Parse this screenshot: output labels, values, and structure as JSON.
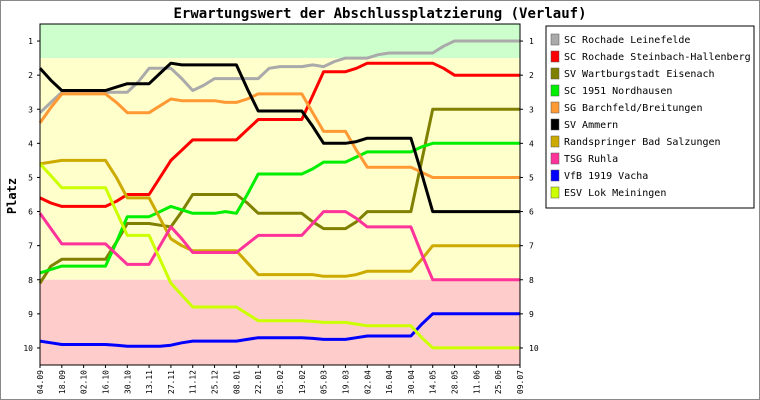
{
  "chart_data": {
    "type": "line",
    "title": "Erwartungswert der Abschlussplatzierung (Verlauf)",
    "ylabel": "Platz",
    "xlabel": "",
    "ylim": [
      0.5,
      10.5
    ],
    "y_inverted": true,
    "y_ticks": [
      "1",
      "2",
      "3",
      "4",
      "5",
      "6",
      "7",
      "8",
      "9",
      "10"
    ],
    "x_tick_labels": [
      "04.09",
      "18.09",
      "02.10",
      "16.10",
      "30.10",
      "13.11",
      "27.11",
      "11.12",
      "25.12",
      "08.01",
      "22.01",
      "05.02",
      "19.02",
      "05.03",
      "19.03",
      "02.04",
      "16.04",
      "30.04",
      "14.05",
      "28.05",
      "11.06",
      "25.06",
      "09.07"
    ],
    "legend_position": "top-right",
    "grid": false,
    "bands": [
      {
        "color": "#ccffcc",
        "from": 0.5,
        "to": 1.5
      },
      {
        "color": "#ffffcc",
        "from": 1.5,
        "to": 8.0
      },
      {
        "color": "#ffcccc",
        "from": 8.0,
        "to": 10.5
      }
    ],
    "x": [
      0,
      0.5,
      1,
      1.5,
      2,
      2.5,
      3,
      3.5,
      4,
      4.5,
      5,
      5.5,
      6,
      6.5,
      7,
      7.5,
      8,
      8.5,
      9,
      9.5,
      10,
      10.5,
      11,
      11.5,
      12,
      12.5,
      13,
      13.5,
      14,
      14.5,
      15,
      15.5,
      16,
      16.5,
      17,
      17.5,
      18,
      18.5,
      19,
      19.5,
      20,
      20.5,
      21,
      21.5,
      22
    ],
    "series": [
      {
        "name": "SC Rochade Leinefelde",
        "color": "#aaaaaa",
        "values": [
          3.1,
          2.8,
          2.5,
          2.5,
          2.5,
          2.5,
          2.5,
          2.5,
          2.5,
          2.2,
          1.8,
          1.8,
          1.8,
          2.1,
          2.45,
          2.3,
          2.1,
          2.1,
          2.1,
          2.1,
          2.1,
          1.8,
          1.75,
          1.75,
          1.75,
          1.7,
          1.75,
          1.6,
          1.5,
          1.5,
          1.5,
          1.4,
          1.35,
          1.35,
          1.35,
          1.35,
          1.35,
          1.15,
          1.0,
          1.0,
          1.0,
          1.0,
          1.0,
          1.0,
          1.0
        ]
      },
      {
        "name": "SC Rochade Steinbach-Hallenberg",
        "color": "#ff0000",
        "values": [
          5.6,
          5.75,
          5.85,
          5.85,
          5.85,
          5.85,
          5.85,
          5.7,
          5.5,
          5.5,
          5.5,
          5.0,
          4.5,
          4.2,
          3.9,
          3.9,
          3.9,
          3.9,
          3.9,
          3.6,
          3.3,
          3.3,
          3.3,
          3.3,
          3.3,
          2.6,
          1.9,
          1.9,
          1.9,
          1.8,
          1.65,
          1.65,
          1.65,
          1.65,
          1.65,
          1.65,
          1.65,
          1.8,
          2.0,
          2.0,
          2.0,
          2.0,
          2.0,
          2.0,
          2.0
        ]
      },
      {
        "name": "SV Wartburgstadt Eisenach",
        "color": "#808000",
        "values": [
          8.1,
          7.6,
          7.4,
          7.4,
          7.4,
          7.4,
          7.4,
          6.9,
          6.35,
          6.35,
          6.35,
          6.4,
          6.45,
          6.0,
          5.5,
          5.5,
          5.5,
          5.5,
          5.5,
          5.75,
          6.05,
          6.05,
          6.05,
          6.05,
          6.05,
          6.3,
          6.5,
          6.5,
          6.5,
          6.3,
          6.0,
          6.0,
          6.0,
          6.0,
          6.0,
          4.5,
          3.0,
          3.0,
          3.0,
          3.0,
          3.0,
          3.0,
          3.0,
          3.0,
          3.0
        ]
      },
      {
        "name": "SC 1951 Nordhausen",
        "color": "#00ee00",
        "values": [
          7.8,
          7.7,
          7.6,
          7.6,
          7.6,
          7.6,
          7.6,
          6.9,
          6.15,
          6.15,
          6.15,
          6.0,
          5.85,
          5.95,
          6.05,
          6.05,
          6.05,
          6.0,
          6.05,
          5.5,
          4.9,
          4.9,
          4.9,
          4.9,
          4.9,
          4.75,
          4.55,
          4.55,
          4.55,
          4.4,
          4.25,
          4.25,
          4.25,
          4.25,
          4.25,
          4.1,
          4.0,
          4.0,
          4.0,
          4.0,
          4.0,
          4.0,
          4.0,
          4.0,
          4.0
        ]
      },
      {
        "name": "SG Barchfeld/Breitungen",
        "color": "#ff9933",
        "values": [
          3.4,
          2.95,
          2.55,
          2.55,
          2.55,
          2.55,
          2.55,
          2.8,
          3.1,
          3.1,
          3.1,
          2.9,
          2.7,
          2.75,
          2.75,
          2.75,
          2.75,
          2.8,
          2.8,
          2.7,
          2.55,
          2.55,
          2.55,
          2.55,
          2.55,
          3.1,
          3.65,
          3.65,
          3.65,
          4.2,
          4.7,
          4.7,
          4.7,
          4.7,
          4.7,
          4.85,
          5.0,
          5.0,
          5.0,
          5.0,
          5.0,
          5.0,
          5.0,
          5.0,
          5.0
        ]
      },
      {
        "name": "SV Ammern",
        "color": "#000000",
        "values": [
          1.8,
          2.15,
          2.45,
          2.45,
          2.45,
          2.45,
          2.45,
          2.35,
          2.25,
          2.25,
          2.25,
          1.95,
          1.65,
          1.7,
          1.7,
          1.7,
          1.7,
          1.7,
          1.7,
          2.4,
          3.05,
          3.05,
          3.05,
          3.05,
          3.05,
          3.5,
          4.0,
          4.0,
          4.0,
          3.95,
          3.85,
          3.85,
          3.85,
          3.85,
          3.85,
          4.9,
          6.0,
          6.0,
          6.0,
          6.0,
          6.0,
          6.0,
          6.0,
          6.0,
          6.0
        ]
      },
      {
        "name": "Randspringer Bad Salzungen",
        "color": "#ccaa00",
        "values": [
          4.6,
          4.55,
          4.5,
          4.5,
          4.5,
          4.5,
          4.5,
          5.0,
          5.6,
          5.6,
          5.6,
          6.2,
          6.8,
          7.0,
          7.15,
          7.15,
          7.15,
          7.15,
          7.15,
          7.5,
          7.85,
          7.85,
          7.85,
          7.85,
          7.85,
          7.85,
          7.9,
          7.9,
          7.9,
          7.85,
          7.75,
          7.75,
          7.75,
          7.75,
          7.75,
          7.4,
          7.0,
          7.0,
          7.0,
          7.0,
          7.0,
          7.0,
          7.0,
          7.0,
          7.0
        ]
      },
      {
        "name": "TSG Ruhla",
        "color": "#ff3399",
        "values": [
          6.05,
          6.5,
          6.95,
          6.95,
          6.95,
          6.95,
          6.95,
          7.25,
          7.55,
          7.55,
          7.55,
          7.0,
          6.45,
          6.8,
          7.2,
          7.2,
          7.2,
          7.2,
          7.2,
          6.95,
          6.7,
          6.7,
          6.7,
          6.7,
          6.7,
          6.35,
          6.0,
          6.0,
          6.0,
          6.2,
          6.45,
          6.45,
          6.45,
          6.45,
          6.45,
          7.25,
          8.0,
          8.0,
          8.0,
          8.0,
          8.0,
          8.0,
          8.0,
          8.0,
          8.0
        ]
      },
      {
        "name": "VfB 1919 Vacha",
        "color": "#0000ff",
        "values": [
          9.8,
          9.85,
          9.9,
          9.9,
          9.9,
          9.9,
          9.9,
          9.92,
          9.95,
          9.95,
          9.95,
          9.95,
          9.92,
          9.85,
          9.8,
          9.8,
          9.8,
          9.8,
          9.8,
          9.75,
          9.7,
          9.7,
          9.7,
          9.7,
          9.7,
          9.72,
          9.75,
          9.75,
          9.75,
          9.7,
          9.65,
          9.65,
          9.65,
          9.65,
          9.65,
          9.3,
          9.0,
          9.0,
          9.0,
          9.0,
          9.0,
          9.0,
          9.0,
          9.0,
          9.0
        ]
      },
      {
        "name": "ESV Lok Meiningen",
        "color": "#ccff00",
        "values": [
          4.6,
          4.95,
          5.3,
          5.3,
          5.3,
          5.3,
          5.3,
          6.0,
          6.7,
          6.7,
          6.7,
          7.4,
          8.1,
          8.45,
          8.8,
          8.8,
          8.8,
          8.8,
          8.8,
          9.0,
          9.2,
          9.2,
          9.2,
          9.2,
          9.2,
          9.22,
          9.25,
          9.25,
          9.25,
          9.3,
          9.35,
          9.35,
          9.35,
          9.35,
          9.35,
          9.7,
          10.0,
          10.0,
          10.0,
          10.0,
          10.0,
          10.0,
          10.0,
          10.0,
          10.0
        ]
      }
    ]
  }
}
